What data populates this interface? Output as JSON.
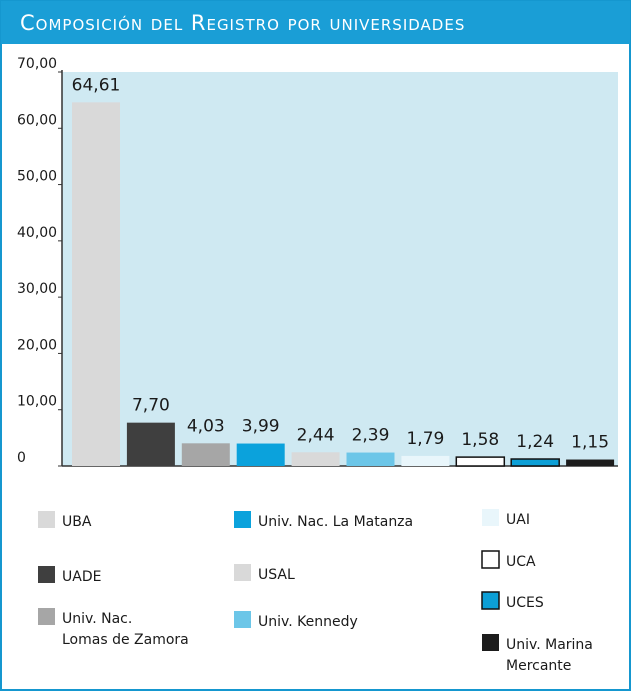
{
  "chart_data": {
    "type": "bar",
    "title": "Composición del Registro por universidades",
    "categories": [
      "UBA",
      "UADE",
      "Univ. Nac. Lomas de Zamora",
      "Univ. Nac. La Matanza",
      "USAL",
      "Univ. Kennedy",
      "UAI",
      "UCA",
      "UCES",
      "Univ. Marina Mercante"
    ],
    "values": [
      64.61,
      7.7,
      4.03,
      3.99,
      2.44,
      2.39,
      1.79,
      1.58,
      1.24,
      1.15
    ],
    "value_labels": [
      "64,61",
      "7,70",
      "4,03",
      "3,99",
      "2,44",
      "2,39",
      "1,79",
      "1,58",
      "1,24",
      "1,15"
    ],
    "colors": [
      "#d9d9d9",
      "#3f3f3f",
      "#a6a6a6",
      "#0ba2dc",
      "#d9d9d9",
      "#6cc6e8",
      "#e9f6fb",
      "#ffffff",
      "#0c9fd6",
      "#1c1c1c"
    ],
    "ylim": [
      0,
      70
    ],
    "yticks": [
      0,
      {
        "value": 10,
        "label": "10,00"
      },
      {
        "value": 20,
        "label": "20,00"
      },
      {
        "value": 30,
        "label": "30,00"
      },
      {
        "value": 40,
        "label": "40,00"
      },
      {
        "value": 50,
        "label": "50,00"
      },
      {
        "value": 60,
        "label": "60,00"
      },
      {
        "value": 70,
        "label": "70,00"
      }
    ]
  }
}
